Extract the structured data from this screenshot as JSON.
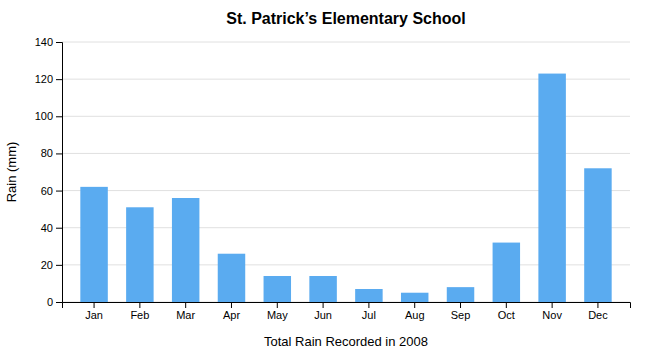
{
  "chart_data": {
    "type": "bar",
    "title": "St. Patrick’s Elementary School",
    "xlabel": "Total Rain Recorded in 2008",
    "ylabel": "Rain (mm)",
    "categories": [
      "Jan",
      "Feb",
      "Mar",
      "Apr",
      "May",
      "Jun",
      "Jul",
      "Aug",
      "Sep",
      "Oct",
      "Nov",
      "Dec"
    ],
    "values": [
      62,
      51,
      56,
      26,
      14,
      14,
      7,
      5,
      8,
      32,
      123,
      72
    ],
    "color": "#5aabf0",
    "ylim": [
      0,
      140
    ],
    "yticks": [
      0,
      20,
      40,
      60,
      80,
      100,
      120,
      140
    ],
    "grid": true
  }
}
